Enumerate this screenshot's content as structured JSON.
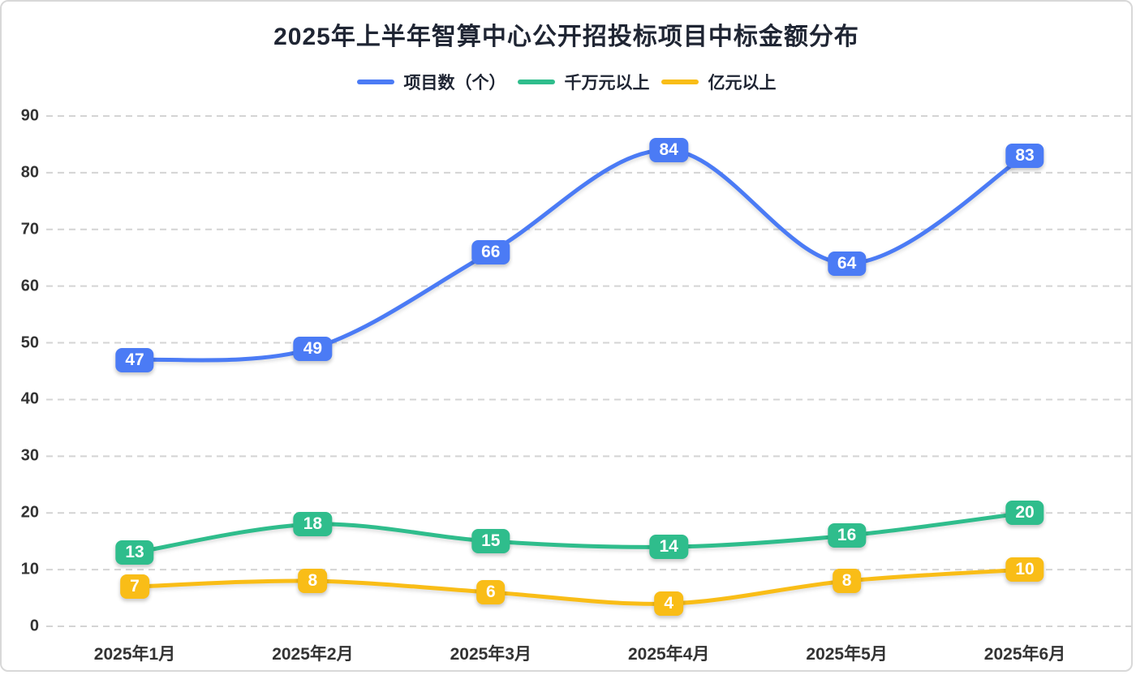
{
  "title": "2025年上半年智算中心公开招投标项目中标金额分布",
  "chart_data": {
    "type": "line",
    "title": "2025年上半年智算中心公开招投标项目中标金额分布",
    "categories": [
      "2025年1月",
      "2025年2月",
      "2025年3月",
      "2025年4月",
      "2025年5月",
      "2025年6月"
    ],
    "series": [
      {
        "name": "项目数（个）",
        "color": "#4b7bf5",
        "values": [
          47,
          49,
          66,
          84,
          64,
          83
        ]
      },
      {
        "name": "千万元以上",
        "color": "#2fbd8c",
        "values": [
          13,
          18,
          15,
          14,
          16,
          20
        ]
      },
      {
        "name": "亿元以上",
        "color": "#f9bd17",
        "values": [
          7,
          8,
          6,
          4,
          8,
          10
        ]
      }
    ],
    "xlabel": "",
    "ylabel": "",
    "ylim": [
      0,
      90
    ],
    "ytick_step": 10,
    "yticks": [
      0,
      10,
      20,
      30,
      40,
      50,
      60,
      70,
      80,
      90
    ],
    "grid": "horizontal-dashed",
    "grid_color": "#d4d4d4",
    "legend_position": "top",
    "data_labels": "on-point-badges",
    "line_style": "smooth"
  },
  "colors": {
    "background": "#ffffff",
    "border": "#d8d8d8",
    "title_text": "#1f2533",
    "axis_text": "#333333",
    "label_text": "#ffffff"
  }
}
